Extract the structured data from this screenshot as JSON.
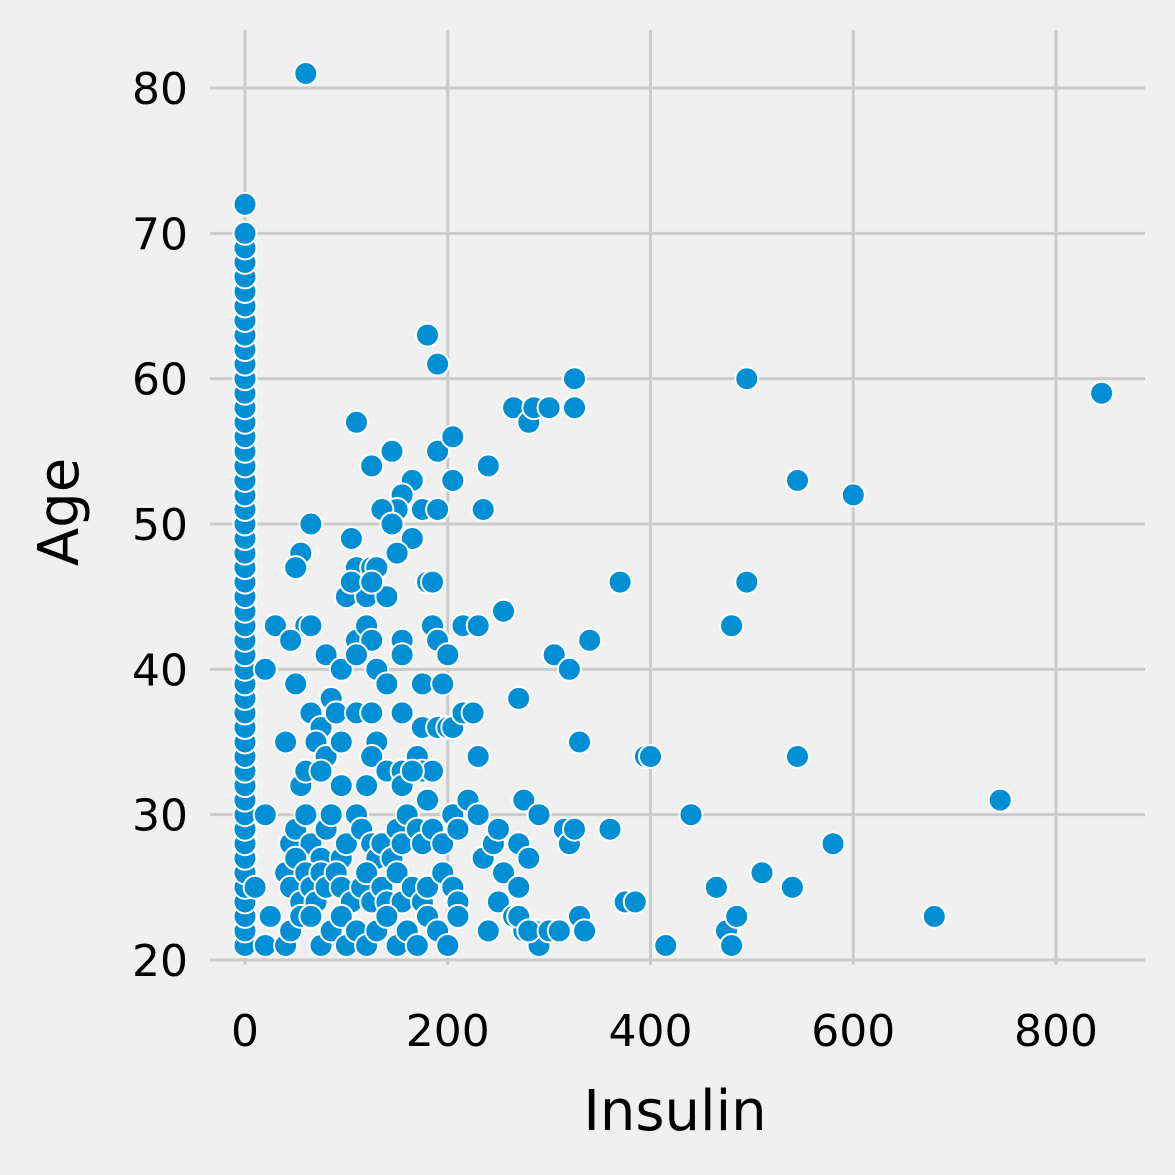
{
  "chart_data": {
    "type": "scatter",
    "xlabel": "Insulin",
    "ylabel": "Age",
    "xlim": [
      -30,
      890
    ],
    "ylim": [
      19.5,
      84
    ],
    "xticks": [
      0,
      200,
      400,
      600,
      800
    ],
    "yticks": [
      20,
      30,
      40,
      50,
      60,
      70,
      80
    ],
    "grid": true,
    "point_color": "#008fd5",
    "point_edge_color": "#ffffff",
    "background": "#f0f0f0",
    "grid_color": "#cbcbcb",
    "points": [
      [
        0,
        21
      ],
      [
        0,
        22
      ],
      [
        0,
        23
      ],
      [
        0,
        24
      ],
      [
        0,
        25
      ],
      [
        0,
        26
      ],
      [
        0,
        27
      ],
      [
        0,
        28
      ],
      [
        0,
        29
      ],
      [
        0,
        30
      ],
      [
        0,
        31
      ],
      [
        0,
        32
      ],
      [
        0,
        33
      ],
      [
        0,
        34
      ],
      [
        0,
        35
      ],
      [
        0,
        36
      ],
      [
        0,
        37
      ],
      [
        0,
        38
      ],
      [
        0,
        39
      ],
      [
        0,
        40
      ],
      [
        0,
        41
      ],
      [
        0,
        42
      ],
      [
        0,
        43
      ],
      [
        0,
        44
      ],
      [
        0,
        45
      ],
      [
        0,
        46
      ],
      [
        0,
        47
      ],
      [
        0,
        48
      ],
      [
        0,
        49
      ],
      [
        0,
        50
      ],
      [
        0,
        51
      ],
      [
        0,
        52
      ],
      [
        0,
        53
      ],
      [
        0,
        54
      ],
      [
        0,
        55
      ],
      [
        0,
        56
      ],
      [
        0,
        57
      ],
      [
        0,
        58
      ],
      [
        0,
        59
      ],
      [
        0,
        60
      ],
      [
        0,
        61
      ],
      [
        0,
        62
      ],
      [
        0,
        63
      ],
      [
        0,
        64
      ],
      [
        0,
        65
      ],
      [
        0,
        66
      ],
      [
        0,
        67
      ],
      [
        0,
        68
      ],
      [
        0,
        69
      ],
      [
        0,
        70
      ],
      [
        0,
        72
      ],
      [
        60,
        81
      ],
      [
        180,
        63
      ],
      [
        190,
        61
      ],
      [
        110,
        57
      ],
      [
        145,
        55
      ],
      [
        190,
        55
      ],
      [
        205,
        56
      ],
      [
        125,
        54
      ],
      [
        240,
        54
      ],
      [
        205,
        53
      ],
      [
        165,
        53
      ],
      [
        155,
        52
      ],
      [
        150,
        51
      ],
      [
        135,
        51
      ],
      [
        175,
        51
      ],
      [
        190,
        51
      ],
      [
        235,
        51
      ],
      [
        145,
        50
      ],
      [
        65,
        50
      ],
      [
        105,
        49
      ],
      [
        165,
        49
      ],
      [
        150,
        48
      ],
      [
        55,
        48
      ],
      [
        50,
        47
      ],
      [
        110,
        47
      ],
      [
        125,
        47
      ],
      [
        130,
        47
      ],
      [
        100,
        45
      ],
      [
        120,
        45
      ],
      [
        140,
        45
      ],
      [
        105,
        46
      ],
      [
        125,
        46
      ],
      [
        180,
        46
      ],
      [
        185,
        46
      ],
      [
        60,
        43
      ],
      [
        65,
        43
      ],
      [
        30,
        43
      ],
      [
        45,
        42
      ],
      [
        110,
        42
      ],
      [
        120,
        43
      ],
      [
        125,
        42
      ],
      [
        155,
        42
      ],
      [
        185,
        43
      ],
      [
        190,
        42
      ],
      [
        215,
        43
      ],
      [
        230,
        43
      ],
      [
        255,
        44
      ],
      [
        20,
        40
      ],
      [
        50,
        39
      ],
      [
        80,
        41
      ],
      [
        95,
        40
      ],
      [
        110,
        41
      ],
      [
        130,
        40
      ],
      [
        140,
        39
      ],
      [
        155,
        41
      ],
      [
        175,
        39
      ],
      [
        195,
        39
      ],
      [
        200,
        41
      ],
      [
        65,
        37
      ],
      [
        75,
        36
      ],
      [
        85,
        38
      ],
      [
        90,
        37
      ],
      [
        110,
        37
      ],
      [
        125,
        37
      ],
      [
        130,
        35
      ],
      [
        155,
        37
      ],
      [
        175,
        36
      ],
      [
        190,
        36
      ],
      [
        200,
        36
      ],
      [
        205,
        36
      ],
      [
        215,
        37
      ],
      [
        225,
        37
      ],
      [
        230,
        34
      ],
      [
        40,
        35
      ],
      [
        70,
        35
      ],
      [
        80,
        34
      ],
      [
        95,
        35
      ],
      [
        125,
        34
      ],
      [
        140,
        33
      ],
      [
        155,
        33
      ],
      [
        170,
        34
      ],
      [
        175,
        33
      ],
      [
        185,
        33
      ],
      [
        55,
        32
      ],
      [
        60,
        33
      ],
      [
        75,
        33
      ],
      [
        95,
        32
      ],
      [
        120,
        32
      ],
      [
        155,
        32
      ],
      [
        165,
        33
      ],
      [
        180,
        31
      ],
      [
        20,
        30
      ],
      [
        45,
        28
      ],
      [
        50,
        29
      ],
      [
        60,
        30
      ],
      [
        65,
        28
      ],
      [
        75,
        27
      ],
      [
        80,
        29
      ],
      [
        85,
        30
      ],
      [
        95,
        27
      ],
      [
        100,
        28
      ],
      [
        110,
        30
      ],
      [
        115,
        29
      ],
      [
        125,
        28
      ],
      [
        130,
        27
      ],
      [
        135,
        28
      ],
      [
        145,
        27
      ],
      [
        150,
        29
      ],
      [
        155,
        28
      ],
      [
        160,
        30
      ],
      [
        170,
        29
      ],
      [
        175,
        28
      ],
      [
        185,
        29
      ],
      [
        195,
        28
      ],
      [
        205,
        30
      ],
      [
        210,
        29
      ],
      [
        220,
        31
      ],
      [
        230,
        30
      ],
      [
        235,
        27
      ],
      [
        245,
        28
      ],
      [
        250,
        29
      ],
      [
        255,
        26
      ],
      [
        270,
        28
      ],
      [
        275,
        31
      ],
      [
        280,
        27
      ],
      [
        290,
        30
      ],
      [
        40,
        26
      ],
      [
        45,
        25
      ],
      [
        50,
        27
      ],
      [
        55,
        24
      ],
      [
        60,
        26
      ],
      [
        65,
        25
      ],
      [
        70,
        24
      ],
      [
        75,
        26
      ],
      [
        80,
        25
      ],
      [
        90,
        26
      ],
      [
        95,
        25
      ],
      [
        105,
        24
      ],
      [
        115,
        25
      ],
      [
        120,
        26
      ],
      [
        125,
        24
      ],
      [
        135,
        25
      ],
      [
        140,
        24
      ],
      [
        150,
        26
      ],
      [
        155,
        24
      ],
      [
        165,
        25
      ],
      [
        175,
        24
      ],
      [
        180,
        25
      ],
      [
        195,
        26
      ],
      [
        205,
        25
      ],
      [
        210,
        24
      ],
      [
        250,
        24
      ],
      [
        270,
        25
      ],
      [
        265,
        23
      ],
      [
        275,
        22
      ],
      [
        285,
        22
      ],
      [
        290,
        21
      ],
      [
        10,
        25
      ],
      [
        20,
        21
      ],
      [
        25,
        23
      ],
      [
        40,
        21
      ],
      [
        45,
        22
      ],
      [
        55,
        23
      ],
      [
        65,
        23
      ],
      [
        75,
        21
      ],
      [
        85,
        22
      ],
      [
        95,
        23
      ],
      [
        100,
        21
      ],
      [
        110,
        22
      ],
      [
        120,
        21
      ],
      [
        130,
        22
      ],
      [
        140,
        23
      ],
      [
        150,
        21
      ],
      [
        160,
        22
      ],
      [
        170,
        21
      ],
      [
        180,
        23
      ],
      [
        190,
        22
      ],
      [
        200,
        21
      ],
      [
        210,
        23
      ],
      [
        240,
        22
      ],
      [
        270,
        23
      ],
      [
        280,
        22
      ],
      [
        300,
        22
      ],
      [
        310,
        22
      ],
      [
        265,
        58
      ],
      [
        280,
        57
      ],
      [
        285,
        58
      ],
      [
        300,
        58
      ],
      [
        325,
        58
      ],
      [
        325,
        60
      ],
      [
        305,
        41
      ],
      [
        320,
        40
      ],
      [
        340,
        42
      ],
      [
        270,
        38
      ],
      [
        370,
        46
      ],
      [
        330,
        35
      ],
      [
        395,
        34
      ],
      [
        400,
        34
      ],
      [
        315,
        29
      ],
      [
        320,
        28
      ],
      [
        325,
        29
      ],
      [
        360,
        29
      ],
      [
        375,
        24
      ],
      [
        385,
        24
      ],
      [
        330,
        23
      ],
      [
        335,
        22
      ],
      [
        415,
        21
      ],
      [
        440,
        30
      ],
      [
        480,
        43
      ],
      [
        495,
        46
      ],
      [
        495,
        60
      ],
      [
        545,
        53
      ],
      [
        600,
        52
      ],
      [
        545,
        34
      ],
      [
        465,
        25
      ],
      [
        475,
        22
      ],
      [
        480,
        21
      ],
      [
        485,
        23
      ],
      [
        510,
        26
      ],
      [
        540,
        25
      ],
      [
        580,
        28
      ],
      [
        680,
        23
      ],
      [
        745,
        31
      ],
      [
        845,
        59
      ]
    ]
  }
}
